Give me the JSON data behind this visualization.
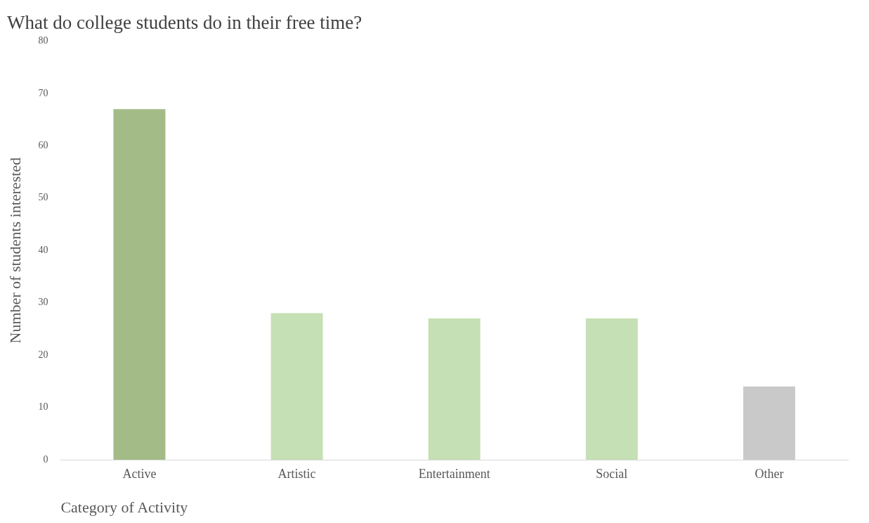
{
  "chart_data": {
    "type": "bar",
    "title": "What do college students do in their free time?",
    "xlabel": "Category of Activity",
    "ylabel": "Number of students interested",
    "categories": [
      "Active",
      "Artistic",
      "Entertainment",
      "Social",
      "Other"
    ],
    "values": [
      67,
      28,
      27,
      27,
      14
    ],
    "colors": [
      "#a3bb87",
      "#c5e0b4",
      "#c5e0b4",
      "#c5e0b4",
      "#c9c9c9"
    ],
    "ylim": [
      0,
      80
    ],
    "yticks": [
      0,
      10,
      20,
      30,
      40,
      50,
      60,
      70,
      80
    ],
    "grid": false,
    "legend": false
  }
}
